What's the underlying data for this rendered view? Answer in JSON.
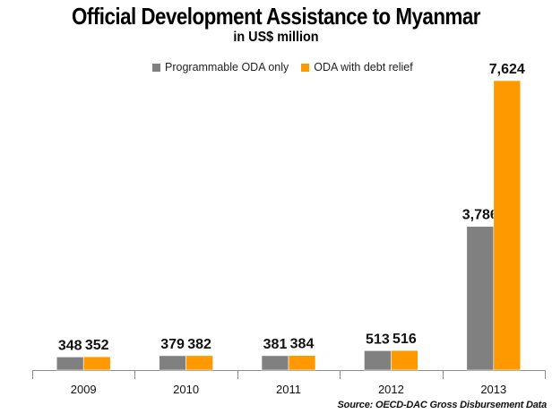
{
  "chart_data": {
    "type": "bar",
    "title": "Official Development Assistance to Myanmar",
    "subtitle": "in US$ million",
    "categories": [
      "2009",
      "2010",
      "2011",
      "2012",
      "2013"
    ],
    "series": [
      {
        "name": "Programmable ODA only",
        "color": "#808080",
        "values": [
          348,
          379,
          381,
          513,
          3786
        ],
        "labels": [
          "348",
          "379",
          "381",
          "513",
          "3,786"
        ]
      },
      {
        "name": "ODA with debt relief",
        "color": "#FF9900",
        "values": [
          352,
          382,
          384,
          516,
          7624
        ],
        "labels": [
          "352",
          "382",
          "384",
          "516",
          "7,624"
        ]
      }
    ],
    "ylim": [
      0,
      7624
    ],
    "grid": false,
    "legend_position": "top",
    "source": "Source: OECD-DAC Gross Disbursement Data"
  }
}
